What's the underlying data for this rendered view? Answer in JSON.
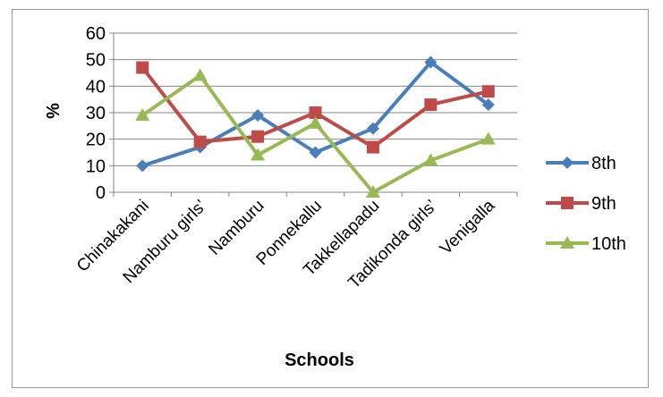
{
  "chart_data": {
    "type": "line",
    "title": "",
    "xlabel": "Schools",
    "ylabel": "%",
    "categories": [
      "Chinakakani",
      "Namburu girls’",
      "Namburu",
      "Ponnekallu",
      "Takkellapadu",
      "Tadikonda girls’",
      "Venigalla"
    ],
    "ylim": [
      0,
      60
    ],
    "yticks": [
      0,
      10,
      20,
      30,
      40,
      50,
      60
    ],
    "grid": true,
    "legend_position": "right",
    "series": [
      {
        "name": "8th",
        "values": [
          10,
          17,
          29,
          15,
          24,
          49,
          33
        ],
        "color": "#4a7ebb",
        "marker": "diamond"
      },
      {
        "name": "9th",
        "values": [
          47,
          19,
          21,
          30,
          17,
          33,
          38
        ],
        "color": "#be4b48",
        "marker": "square"
      },
      {
        "name": "10th",
        "values": [
          29,
          44,
          14,
          26,
          0,
          12,
          20
        ],
        "color": "#98b954",
        "marker": "triangle"
      }
    ]
  }
}
